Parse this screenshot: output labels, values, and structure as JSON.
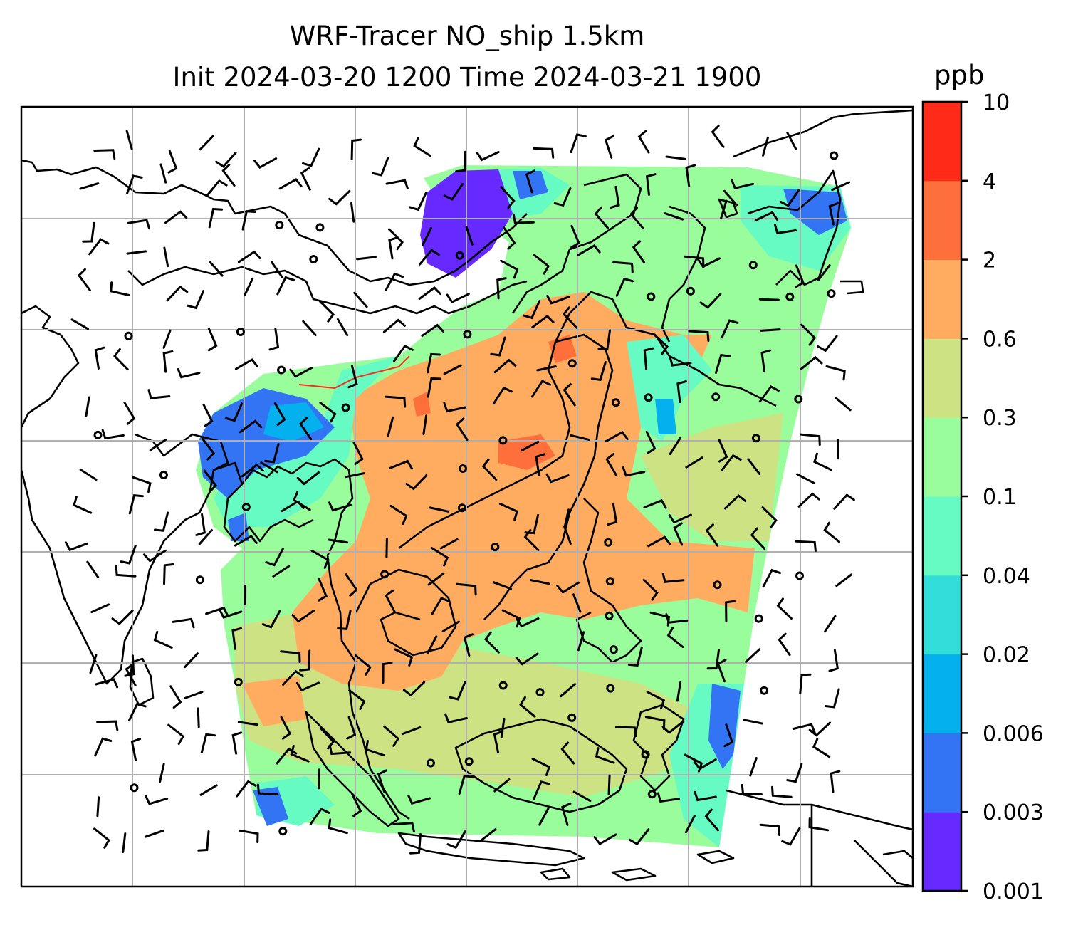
{
  "title": {
    "line1": "WRF-Tracer NO_ship 1.5km",
    "line2": "Init 2024-03-20 1200 Time 2024-03-21 1900"
  },
  "colorbar": {
    "unit": "ppb",
    "levels": [
      "0.001",
      "0.003",
      "0.006",
      "0.02",
      "0.04",
      "0.1",
      "0.3",
      "0.6",
      "2",
      "4",
      "10"
    ],
    "colors": [
      "#6629ff",
      "#3374f5",
      "#04b0ed",
      "#31deda",
      "#67fbc4",
      "#99fd9b",
      "#cde283",
      "#ffac61",
      "#ff6f3b",
      "#ff2a17"
    ]
  },
  "map": {
    "background": "#ffffff",
    "coastline_color": "#000000",
    "gridline_color": "#b0b0b0",
    "wind_barb_color": "#000000"
  }
}
